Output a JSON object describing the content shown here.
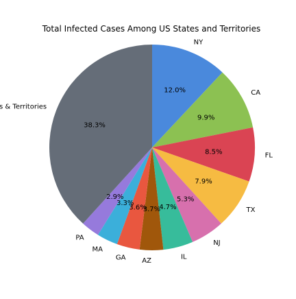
{
  "chart_data": {
    "type": "pie",
    "title": "Total Infected Cases Among US States and Territories",
    "start_angle_deg": 90,
    "direction": "clockwise",
    "categories": [
      "NY",
      "CA",
      "FL",
      "TX",
      "NJ",
      "IL",
      "AZ",
      "GA",
      "MA",
      "PA",
      "Other States & Territories"
    ],
    "values": [
      12.0,
      9.9,
      8.5,
      7.9,
      5.3,
      4.7,
      3.7,
      3.6,
      3.3,
      2.9,
      38.3
    ],
    "labels": [
      "12.0%",
      "9.9%",
      "8.5%",
      "7.9%",
      "5.3%",
      "4.7%",
      "3.7%",
      "3.6%",
      "3.3%",
      "2.9%",
      "38.3%"
    ],
    "colors": [
      "#4A89DC",
      "#8CC152",
      "#DA4453",
      "#F6BB42",
      "#D770AD",
      "#37BC9B",
      "#A0570B",
      "#E9573F",
      "#3BAFDA",
      "#967ADC",
      "#656D78"
    ],
    "legend": "none"
  }
}
